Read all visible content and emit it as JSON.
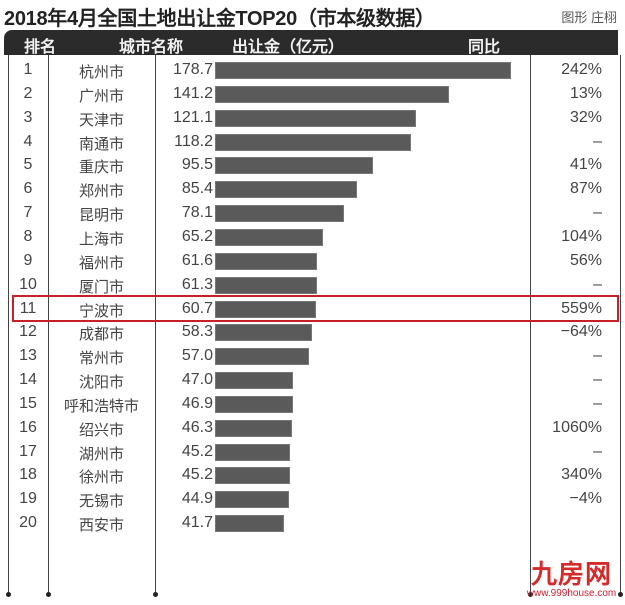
{
  "title": "2018年4月全国土地出让金TOP20（市本级数据）",
  "credit": "图形 庄栩",
  "header": {
    "rank": "排名",
    "city": "城市名称",
    "value": "出让金（亿元）",
    "yoy": "同比"
  },
  "highlight_row": 10,
  "colors": {
    "header_bg": "#2b2b2b",
    "bar": "#5a5a5a",
    "highlight": "#c8202a",
    "watermark": "#d42a2a"
  },
  "rows": [
    {
      "rank": "1",
      "city": "杭州市",
      "value": "178.7",
      "yoy": "242%"
    },
    {
      "rank": "2",
      "city": "广州市",
      "value": "141.2",
      "yoy": "13%"
    },
    {
      "rank": "3",
      "city": "天津市",
      "value": "121.1",
      "yoy": "32%"
    },
    {
      "rank": "4",
      "city": "南通市",
      "value": "118.2",
      "yoy": "–"
    },
    {
      "rank": "5",
      "city": "重庆市",
      "value": "95.5",
      "yoy": "41%"
    },
    {
      "rank": "6",
      "city": "郑州市",
      "value": "85.4",
      "yoy": "87%"
    },
    {
      "rank": "7",
      "city": "昆明市",
      "value": "78.1",
      "yoy": "–"
    },
    {
      "rank": "8",
      "city": "上海市",
      "value": "65.2",
      "yoy": "104%"
    },
    {
      "rank": "9",
      "city": "福州市",
      "value": "61.6",
      "yoy": "56%"
    },
    {
      "rank": "10",
      "city": "厦门市",
      "value": "61.3",
      "yoy": "–"
    },
    {
      "rank": "11",
      "city": "宁波市",
      "value": "60.7",
      "yoy": "559%"
    },
    {
      "rank": "12",
      "city": "成都市",
      "value": "58.3",
      "yoy": "−64%"
    },
    {
      "rank": "13",
      "city": "常州市",
      "value": "57.0",
      "yoy": "–"
    },
    {
      "rank": "14",
      "city": "沈阳市",
      "value": "47.0",
      "yoy": "–"
    },
    {
      "rank": "15",
      "city": "呼和浩特市",
      "value": "46.9",
      "yoy": "–"
    },
    {
      "rank": "16",
      "city": "绍兴市",
      "value": "46.3",
      "yoy": "1060%"
    },
    {
      "rank": "17",
      "city": "湖州市",
      "value": "45.2",
      "yoy": "–"
    },
    {
      "rank": "18",
      "city": "徐州市",
      "value": "45.2",
      "yoy": "340%"
    },
    {
      "rank": "19",
      "city": "无锡市",
      "value": "44.9",
      "yoy": "−4%"
    },
    {
      "rank": "20",
      "city": "西安市",
      "value": "41.7",
      "yoy": ""
    }
  ],
  "watermark": {
    "logo": "九房网",
    "url": "www.999house.com"
  },
  "chart_data": {
    "type": "bar",
    "orientation": "horizontal",
    "title": "2018年4月全国土地出让金TOP20（市本级数据）",
    "xlabel": "出让金（亿元）",
    "ylabel": "城市名称",
    "categories": [
      "杭州市",
      "广州市",
      "天津市",
      "南通市",
      "重庆市",
      "郑州市",
      "昆明市",
      "上海市",
      "福州市",
      "厦门市",
      "宁波市",
      "成都市",
      "常州市",
      "沈阳市",
      "呼和浩特市",
      "绍兴市",
      "湖州市",
      "徐州市",
      "无锡市",
      "西安市"
    ],
    "values": [
      178.7,
      141.2,
      121.1,
      118.2,
      95.5,
      85.4,
      78.1,
      65.2,
      61.6,
      61.3,
      60.7,
      58.3,
      57.0,
      47.0,
      46.9,
      46.3,
      45.2,
      45.2,
      44.9,
      41.7
    ],
    "yoy": [
      "242%",
      "13%",
      "32%",
      "–",
      "41%",
      "87%",
      "–",
      "104%",
      "56%",
      "–",
      "559%",
      "−64%",
      "–",
      "–",
      "–",
      "1060%",
      "–",
      "340%",
      "−4%",
      ""
    ],
    "grid": false,
    "legend": null,
    "annotations": [
      "厦门市 row highlighted with red box"
    ]
  }
}
